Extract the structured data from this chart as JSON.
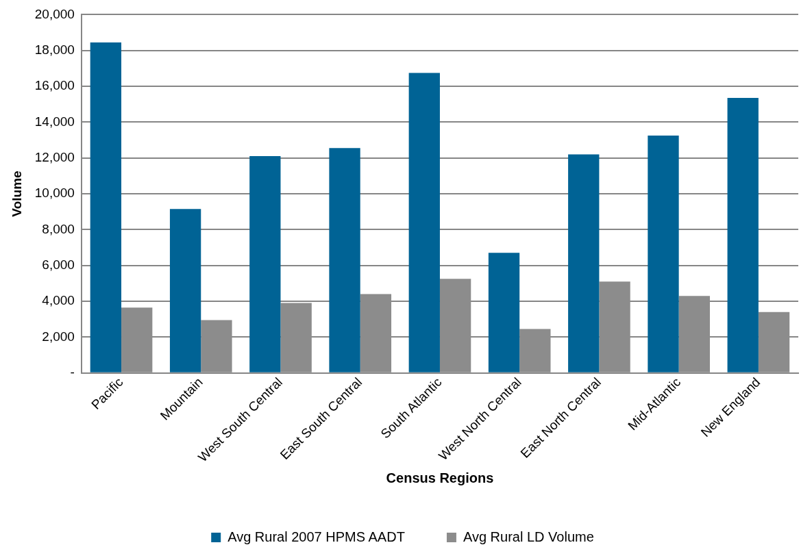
{
  "chart_data": {
    "type": "bar",
    "xlabel": "Census Regions",
    "ylabel": "Volume",
    "categories": [
      "Pacific",
      "Mountain",
      "West South Central",
      "East South Central",
      "South Atlantic",
      "West North Central",
      "East North Central",
      "Mid-Atlantic",
      "New England"
    ],
    "series": [
      {
        "name": "Avg Rural 2007 HPMS AADT",
        "color": "#006395",
        "values": [
          18450,
          9150,
          12100,
          12550,
          16750,
          6700,
          12200,
          13250,
          15350
        ]
      },
      {
        "name": "Avg Rural LD Volume",
        "color": "#8c8c8c",
        "values": [
          3650,
          2950,
          3900,
          4400,
          5250,
          2450,
          5100,
          4300,
          3400
        ]
      }
    ],
    "ylim": [
      0,
      20000
    ],
    "yticks": [
      {
        "value": 0,
        "label": "-"
      },
      {
        "value": 2000,
        "label": "2,000"
      },
      {
        "value": 4000,
        "label": "4,000"
      },
      {
        "value": 6000,
        "label": "6,000"
      },
      {
        "value": 8000,
        "label": "8,000"
      },
      {
        "value": 10000,
        "label": "10,000"
      },
      {
        "value": 12000,
        "label": "12,000"
      },
      {
        "value": 14000,
        "label": "14,000"
      },
      {
        "value": 16000,
        "label": "16,000"
      },
      {
        "value": 18000,
        "label": "18,000"
      },
      {
        "value": 20000,
        "label": "20,000"
      }
    ],
    "grid": "y",
    "legend": "bottom"
  }
}
